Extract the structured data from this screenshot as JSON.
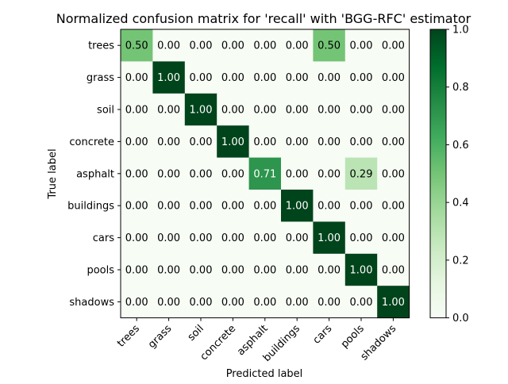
{
  "chart_data": {
    "type": "heatmap",
    "title": "Normalized confusion matrix for 'recall' with 'BGG-RFC' estimator",
    "xlabel": "Predicted label",
    "ylabel": "True label",
    "x_categories": [
      "trees",
      "grass",
      "soil",
      "concrete",
      "asphalt",
      "buildings",
      "cars",
      "pools",
      "shadows"
    ],
    "y_categories": [
      "trees",
      "grass",
      "soil",
      "concrete",
      "asphalt",
      "buildings",
      "cars",
      "pools",
      "shadows"
    ],
    "values": [
      [
        0.5,
        0.0,
        0.0,
        0.0,
        0.0,
        0.0,
        0.5,
        0.0,
        0.0
      ],
      [
        0.0,
        1.0,
        0.0,
        0.0,
        0.0,
        0.0,
        0.0,
        0.0,
        0.0
      ],
      [
        0.0,
        0.0,
        1.0,
        0.0,
        0.0,
        0.0,
        0.0,
        0.0,
        0.0
      ],
      [
        0.0,
        0.0,
        0.0,
        1.0,
        0.0,
        0.0,
        0.0,
        0.0,
        0.0
      ],
      [
        0.0,
        0.0,
        0.0,
        0.0,
        0.71,
        0.0,
        0.0,
        0.29,
        0.0
      ],
      [
        0.0,
        0.0,
        0.0,
        0.0,
        0.0,
        1.0,
        0.0,
        0.0,
        0.0
      ],
      [
        0.0,
        0.0,
        0.0,
        0.0,
        0.0,
        0.0,
        1.0,
        0.0,
        0.0
      ],
      [
        0.0,
        0.0,
        0.0,
        0.0,
        0.0,
        0.0,
        0.0,
        1.0,
        0.0
      ],
      [
        0.0,
        0.0,
        0.0,
        0.0,
        0.0,
        0.0,
        0.0,
        0.0,
        1.0
      ]
    ],
    "value_range": [
      0.0,
      1.0
    ],
    "colormap": "Greens",
    "colorbar_ticks": [
      "0.0",
      "0.2",
      "0.4",
      "0.6",
      "0.8",
      "1.0"
    ]
  }
}
